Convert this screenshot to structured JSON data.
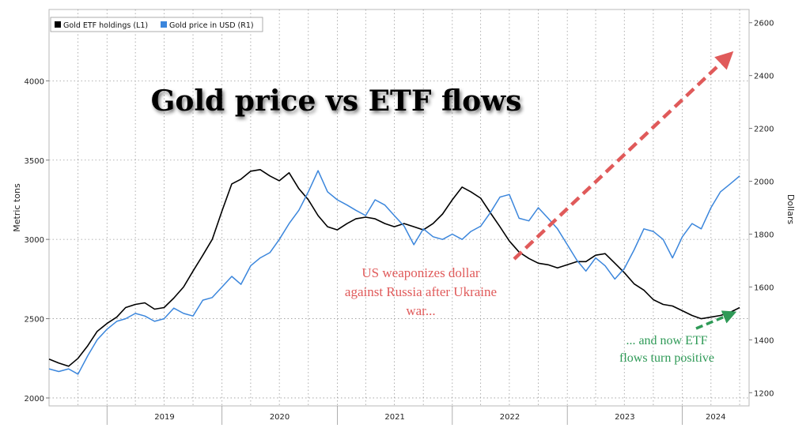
{
  "chart_data": {
    "type": "line",
    "title": "Gold price vs ETF flows",
    "x": {
      "categories": [
        "2019",
        "2020",
        "2021",
        "2022",
        "2023",
        "2024"
      ],
      "range": [
        "2018-07-01",
        "2024-07-31"
      ]
    },
    "y_left": {
      "label": "Metric tons",
      "range": [
        1950,
        4450
      ],
      "ticks": [
        2000,
        2500,
        3000,
        3500,
        4000
      ]
    },
    "y_right": {
      "label": "Dollars",
      "range": [
        1150,
        2650
      ],
      "ticks": [
        1200,
        1400,
        1600,
        1800,
        2000,
        2200,
        2400,
        2600
      ]
    },
    "legend": {
      "placement": "top-left",
      "items": [
        {
          "name": "Gold ETF holdings (L1)",
          "color": "#000000"
        },
        {
          "name": "Gold price in USD (R1)",
          "color": "#3b86dc"
        }
      ]
    },
    "series": [
      {
        "name": "Gold ETF holdings (L1)",
        "axis": "left",
        "color": "#000000",
        "points": [
          [
            "2018-07-01",
            2245
          ],
          [
            "2018-08-01",
            2220
          ],
          [
            "2018-09-01",
            2200
          ],
          [
            "2018-10-01",
            2250
          ],
          [
            "2018-11-01",
            2330
          ],
          [
            "2018-12-01",
            2420
          ],
          [
            "2019-01-01",
            2470
          ],
          [
            "2019-02-01",
            2510
          ],
          [
            "2019-03-01",
            2570
          ],
          [
            "2019-04-01",
            2590
          ],
          [
            "2019-05-01",
            2600
          ],
          [
            "2019-06-01",
            2560
          ],
          [
            "2019-07-01",
            2570
          ],
          [
            "2019-08-01",
            2630
          ],
          [
            "2019-09-01",
            2700
          ],
          [
            "2019-10-01",
            2800
          ],
          [
            "2019-11-01",
            2900
          ],
          [
            "2019-12-01",
            3000
          ],
          [
            "2020-01-01",
            3180
          ],
          [
            "2020-02-01",
            3350
          ],
          [
            "2020-03-01",
            3380
          ],
          [
            "2020-04-01",
            3430
          ],
          [
            "2020-05-01",
            3440
          ],
          [
            "2020-06-01",
            3400
          ],
          [
            "2020-07-01",
            3370
          ],
          [
            "2020-08-01",
            3420
          ],
          [
            "2020-09-01",
            3320
          ],
          [
            "2020-10-01",
            3250
          ],
          [
            "2020-11-01",
            3150
          ],
          [
            "2020-12-01",
            3080
          ],
          [
            "2021-01-01",
            3060
          ],
          [
            "2021-02-01",
            3100
          ],
          [
            "2021-03-01",
            3130
          ],
          [
            "2021-04-01",
            3140
          ],
          [
            "2021-05-01",
            3130
          ],
          [
            "2021-06-01",
            3100
          ],
          [
            "2021-07-01",
            3080
          ],
          [
            "2021-08-01",
            3100
          ],
          [
            "2021-09-01",
            3080
          ],
          [
            "2021-10-01",
            3060
          ],
          [
            "2021-11-01",
            3100
          ],
          [
            "2021-12-01",
            3160
          ],
          [
            "2022-01-01",
            3250
          ],
          [
            "2022-02-01",
            3330
          ],
          [
            "2022-03-01",
            3300
          ],
          [
            "2022-04-01",
            3260
          ],
          [
            "2022-05-01",
            3170
          ],
          [
            "2022-06-01",
            3080
          ],
          [
            "2022-07-01",
            2990
          ],
          [
            "2022-08-01",
            2920
          ],
          [
            "2022-09-01",
            2880
          ],
          [
            "2022-10-01",
            2850
          ],
          [
            "2022-11-01",
            2840
          ],
          [
            "2022-12-01",
            2820
          ],
          [
            "2023-01-01",
            2840
          ],
          [
            "2023-02-01",
            2860
          ],
          [
            "2023-03-01",
            2860
          ],
          [
            "2023-04-01",
            2900
          ],
          [
            "2023-05-01",
            2910
          ],
          [
            "2023-06-01",
            2850
          ],
          [
            "2023-07-01",
            2790
          ],
          [
            "2023-08-01",
            2720
          ],
          [
            "2023-09-01",
            2680
          ],
          [
            "2023-10-01",
            2620
          ],
          [
            "2023-11-01",
            2590
          ],
          [
            "2023-12-01",
            2580
          ],
          [
            "2024-01-01",
            2550
          ],
          [
            "2024-02-01",
            2520
          ],
          [
            "2024-03-01",
            2500
          ],
          [
            "2024-04-01",
            2510
          ],
          [
            "2024-05-01",
            2520
          ],
          [
            "2024-06-01",
            2540
          ],
          [
            "2024-07-01",
            2570
          ]
        ]
      },
      {
        "name": "Gold price in USD (R1)",
        "axis": "right",
        "color": "#3b86dc",
        "points": [
          [
            "2018-07-01",
            1290
          ],
          [
            "2018-08-01",
            1280
          ],
          [
            "2018-09-01",
            1290
          ],
          [
            "2018-10-01",
            1270
          ],
          [
            "2018-11-01",
            1340
          ],
          [
            "2018-12-01",
            1400
          ],
          [
            "2019-01-01",
            1440
          ],
          [
            "2019-02-01",
            1470
          ],
          [
            "2019-03-01",
            1480
          ],
          [
            "2019-04-01",
            1500
          ],
          [
            "2019-05-01",
            1490
          ],
          [
            "2019-06-01",
            1470
          ],
          [
            "2019-07-01",
            1480
          ],
          [
            "2019-08-01",
            1520
          ],
          [
            "2019-09-01",
            1500
          ],
          [
            "2019-10-01",
            1490
          ],
          [
            "2019-11-01",
            1550
          ],
          [
            "2019-12-01",
            1560
          ],
          [
            "2020-01-01",
            1600
          ],
          [
            "2020-02-01",
            1640
          ],
          [
            "2020-03-01",
            1610
          ],
          [
            "2020-04-01",
            1680
          ],
          [
            "2020-05-01",
            1710
          ],
          [
            "2020-06-01",
            1730
          ],
          [
            "2020-07-01",
            1780
          ],
          [
            "2020-08-01",
            1840
          ],
          [
            "2020-09-01",
            1890
          ],
          [
            "2020-10-01",
            1960
          ],
          [
            "2020-11-01",
            2040
          ],
          [
            "2020-12-01",
            1960
          ],
          [
            "2021-01-01",
            1930
          ],
          [
            "2021-02-01",
            1910
          ],
          [
            "2021-03-01",
            1890
          ],
          [
            "2021-04-01",
            1870
          ],
          [
            "2021-05-01",
            1930
          ],
          [
            "2021-06-01",
            1910
          ],
          [
            "2021-07-01",
            1870
          ],
          [
            "2021-08-01",
            1830
          ],
          [
            "2021-09-01",
            1760
          ],
          [
            "2021-10-01",
            1820
          ],
          [
            "2021-11-01",
            1790
          ],
          [
            "2021-12-01",
            1780
          ],
          [
            "2022-01-01",
            1800
          ],
          [
            "2022-02-01",
            1780
          ],
          [
            "2022-03-01",
            1810
          ],
          [
            "2022-04-01",
            1830
          ],
          [
            "2022-05-01",
            1880
          ],
          [
            "2022-06-01",
            1940
          ],
          [
            "2022-07-01",
            1950
          ],
          [
            "2022-08-01",
            1860
          ],
          [
            "2022-09-01",
            1850
          ],
          [
            "2022-10-01",
            1900
          ],
          [
            "2022-11-01",
            1860
          ],
          [
            "2022-12-01",
            1820
          ],
          [
            "2023-01-01",
            1760
          ],
          [
            "2023-02-01",
            1700
          ],
          [
            "2023-03-01",
            1660
          ],
          [
            "2023-04-01",
            1710
          ],
          [
            "2023-05-01",
            1680
          ],
          [
            "2023-06-01",
            1630
          ],
          [
            "2023-07-01",
            1670
          ],
          [
            "2023-08-01",
            1740
          ],
          [
            "2023-09-01",
            1820
          ],
          [
            "2023-10-01",
            1810
          ],
          [
            "2023-11-01",
            1780
          ],
          [
            "2023-12-01",
            1710
          ],
          [
            "2024-01-01",
            1790
          ],
          [
            "2024-02-01",
            1840
          ],
          [
            "2024-03-01",
            1820
          ],
          [
            "2024-04-01",
            1900
          ],
          [
            "2024-05-01",
            1960
          ],
          [
            "2024-06-01",
            1990
          ],
          [
            "2024-07-01",
            2020
          ]
        ]
      }
    ],
    "annotations": [
      {
        "lines": [
          "US weaponizes dollar",
          "against Russia after Ukraine",
          "war..."
        ],
        "color": "#e05a5a"
      },
      {
        "lines": [
          "... and now ETF",
          "flows turn positive"
        ],
        "color": "#2f9a57"
      }
    ]
  }
}
